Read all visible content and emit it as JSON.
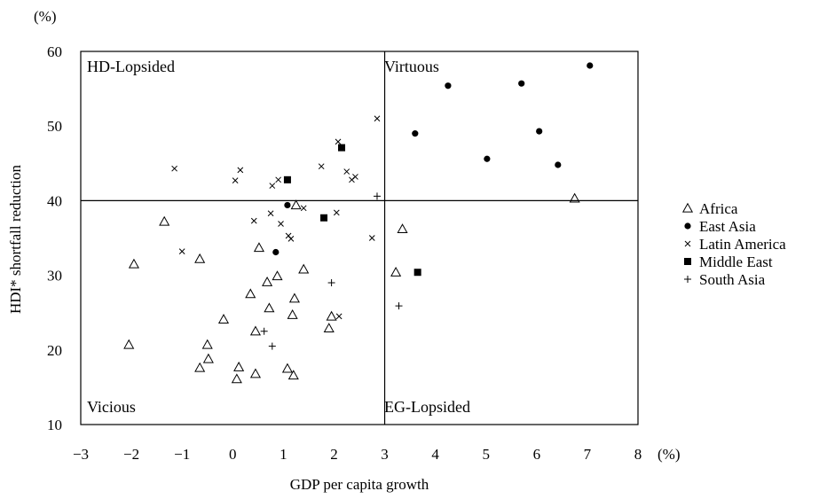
{
  "chart_data": {
    "type": "scatter",
    "xlabel": "GDP per capita growth",
    "ylabel": "HDI* shortfall reduction",
    "x_unit": "(%)",
    "y_unit": "(%)",
    "xlim": [
      -3,
      8
    ],
    "ylim": [
      10,
      60
    ],
    "xticks": [
      "-3",
      "-2",
      "-1",
      "0",
      "1",
      "2",
      "3",
      "4",
      "5",
      "6",
      "7",
      "8"
    ],
    "yticks": [
      "10",
      "20",
      "30",
      "40",
      "50",
      "60"
    ],
    "reference_lines": {
      "x": 3,
      "y": 40
    },
    "quadrants": {
      "top_left": "HD-Lopsided",
      "top_right": "Virtuous",
      "bottom_left": "Vicious",
      "bottom_right": "EG-Lopsided"
    },
    "grid": false,
    "legend_position": "right",
    "series": [
      {
        "name": "Africa",
        "marker": "triangle-open",
        "x": [
          -2.05,
          -1.95,
          -1.35,
          -0.65,
          -0.65,
          -0.5,
          -0.48,
          -0.18,
          0.08,
          0.12,
          0.35,
          0.45,
          0.45,
          0.52,
          0.68,
          0.72,
          0.88,
          1.08,
          1.18,
          1.2,
          1.22,
          1.25,
          1.4,
          1.9,
          1.95,
          3.22,
          3.35,
          6.75
        ],
        "y": [
          20.7,
          31.5,
          37.2,
          32.2,
          17.6,
          20.7,
          18.8,
          24.1,
          16.1,
          17.7,
          27.5,
          22.5,
          16.8,
          33.7,
          29.1,
          25.6,
          29.9,
          17.5,
          24.7,
          16.6,
          26.9,
          39.4,
          30.8,
          22.9,
          24.5,
          30.4,
          36.2,
          40.3
        ]
      },
      {
        "name": "East Asia",
        "marker": "circle-filled",
        "x": [
          0.85,
          1.08,
          3.6,
          4.25,
          5.02,
          5.7,
          6.05,
          6.42,
          7.05
        ],
        "y": [
          33.1,
          39.4,
          49.0,
          55.4,
          45.6,
          55.7,
          49.3,
          44.8,
          58.1
        ]
      },
      {
        "name": "Latin America",
        "marker": "x",
        "x": [
          -1.15,
          -1.0,
          0.05,
          0.15,
          0.42,
          0.75,
          0.78,
          0.9,
          0.95,
          1.1,
          1.15,
          1.4,
          1.75,
          2.05,
          2.08,
          2.1,
          2.25,
          2.35,
          2.42,
          2.75,
          2.85
        ],
        "y": [
          44.3,
          33.2,
          42.7,
          44.1,
          37.3,
          38.3,
          42.0,
          42.8,
          36.9,
          35.3,
          34.9,
          39.0,
          44.6,
          38.4,
          47.9,
          24.5,
          43.9,
          42.8,
          43.2,
          35.0,
          51.0
        ]
      },
      {
        "name": "Middle East",
        "marker": "square-filled",
        "x": [
          1.08,
          1.8,
          2.15,
          3.65
        ],
        "y": [
          42.8,
          37.7,
          47.1,
          30.4
        ]
      },
      {
        "name": "South Asia",
        "marker": "plus",
        "x": [
          0.62,
          0.78,
          1.95,
          2.85,
          3.28
        ],
        "y": [
          22.5,
          20.5,
          29.0,
          40.6,
          25.9
        ]
      }
    ]
  }
}
